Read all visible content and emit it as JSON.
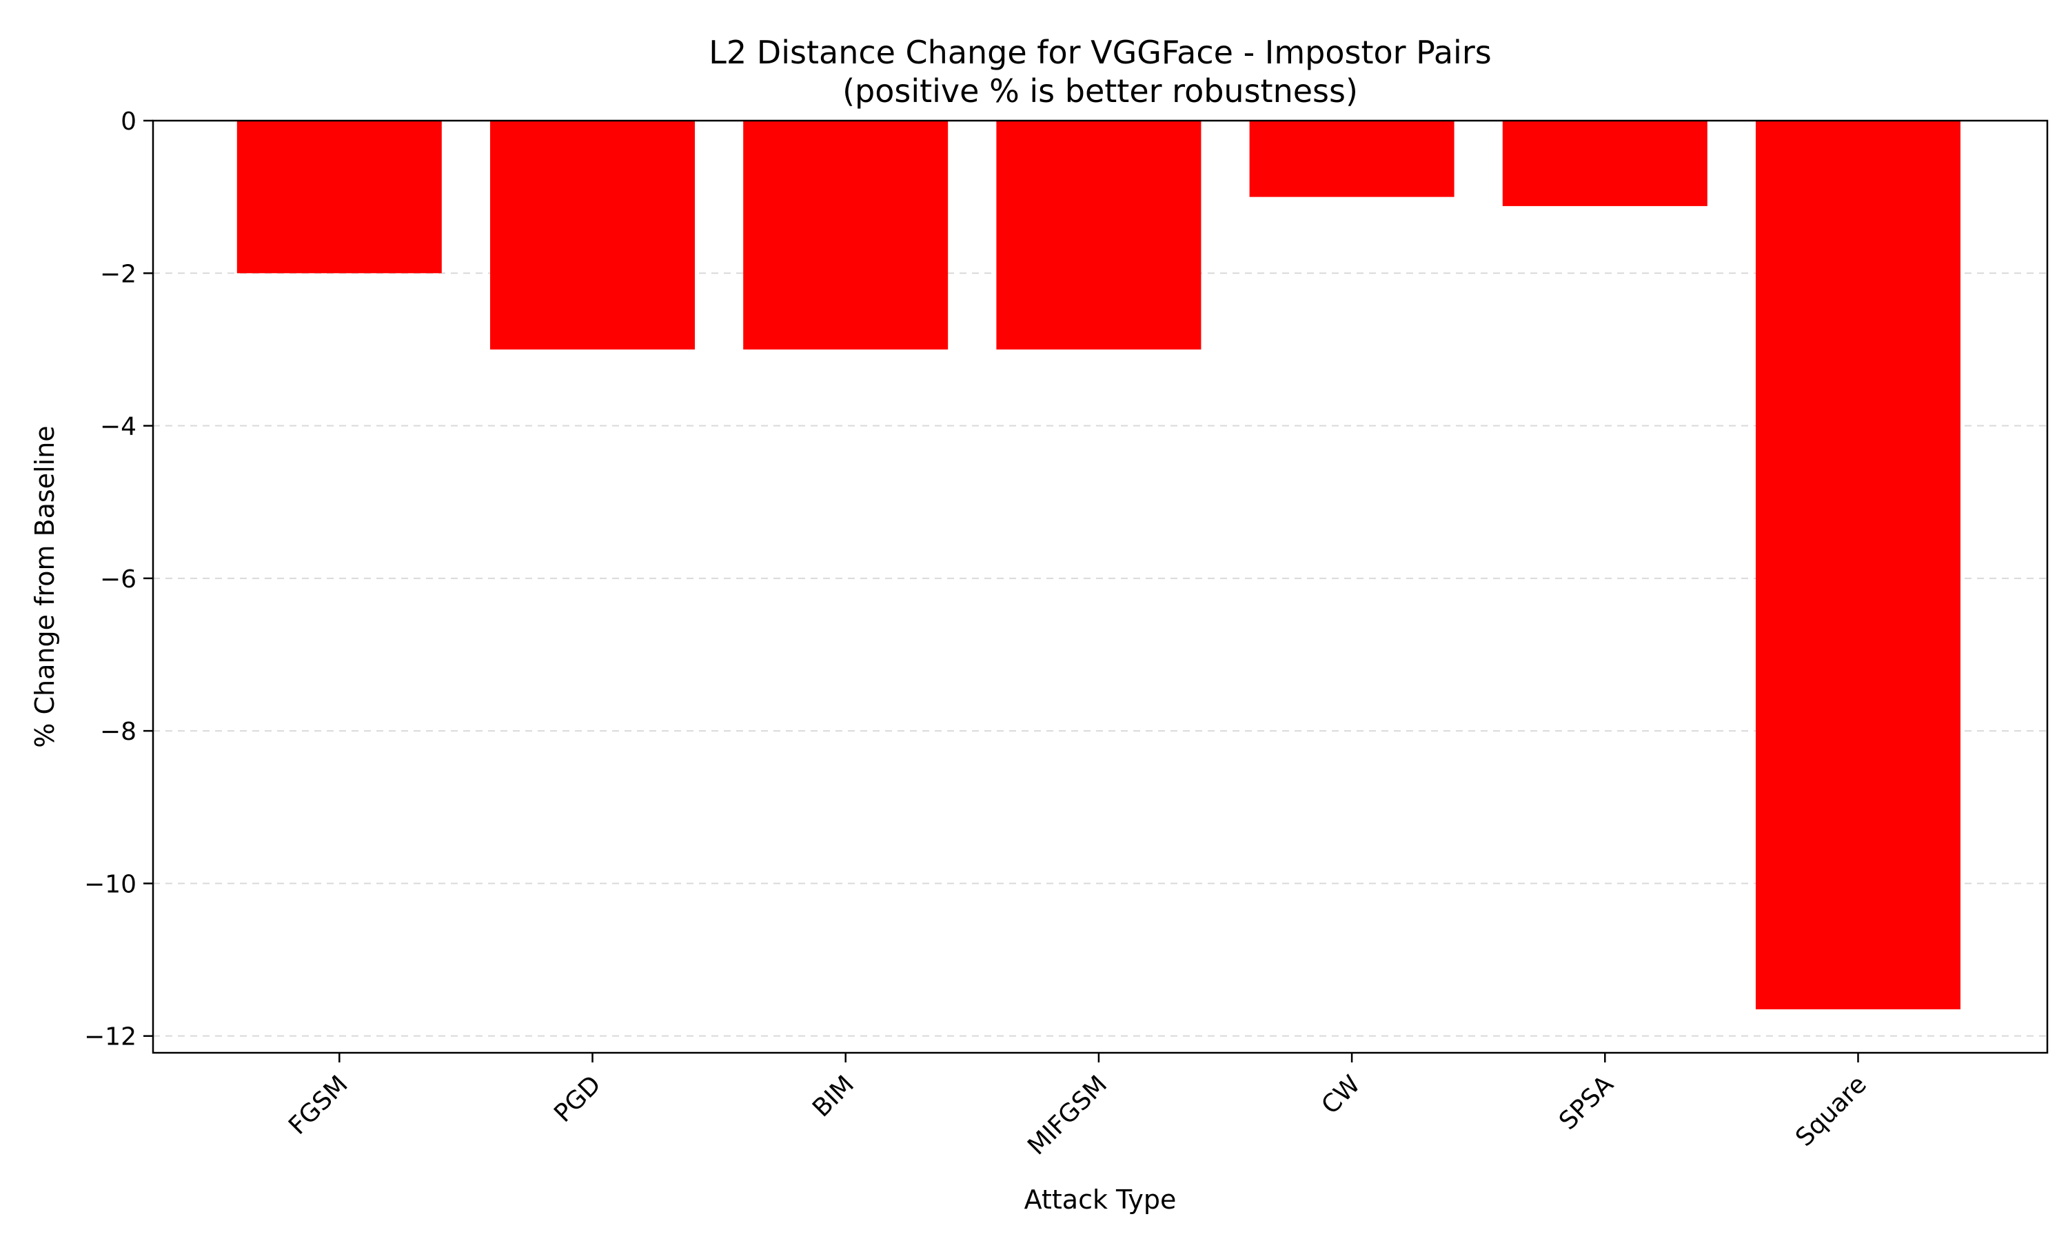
{
  "chart_data": {
    "type": "bar",
    "title": "L2 Distance Change for VGGFace - Impostor Pairs",
    "subtitle": "(positive % is better robustness)",
    "xlabel": "Attack Type",
    "ylabel": "% Change from Baseline",
    "categories": [
      "FGSM",
      "PGD",
      "BIM",
      "MIFGSM",
      "CW",
      "SPSA",
      "Square"
    ],
    "series": [
      {
        "values": [
          -2.0,
          -3.0,
          -3.0,
          -3.0,
          -1.0,
          -1.12,
          -11.65
        ]
      }
    ],
    "ylim": [
      -12.22,
      0
    ],
    "yticks": [
      0,
      -2,
      -4,
      -6,
      -8,
      -10,
      -12
    ],
    "ytick_labels": [
      "0",
      "−2",
      "−4",
      "−6",
      "−8",
      "−10",
      "−12"
    ],
    "bar_color": "#ff0000",
    "grid": "y-dashed",
    "legend": "none"
  }
}
